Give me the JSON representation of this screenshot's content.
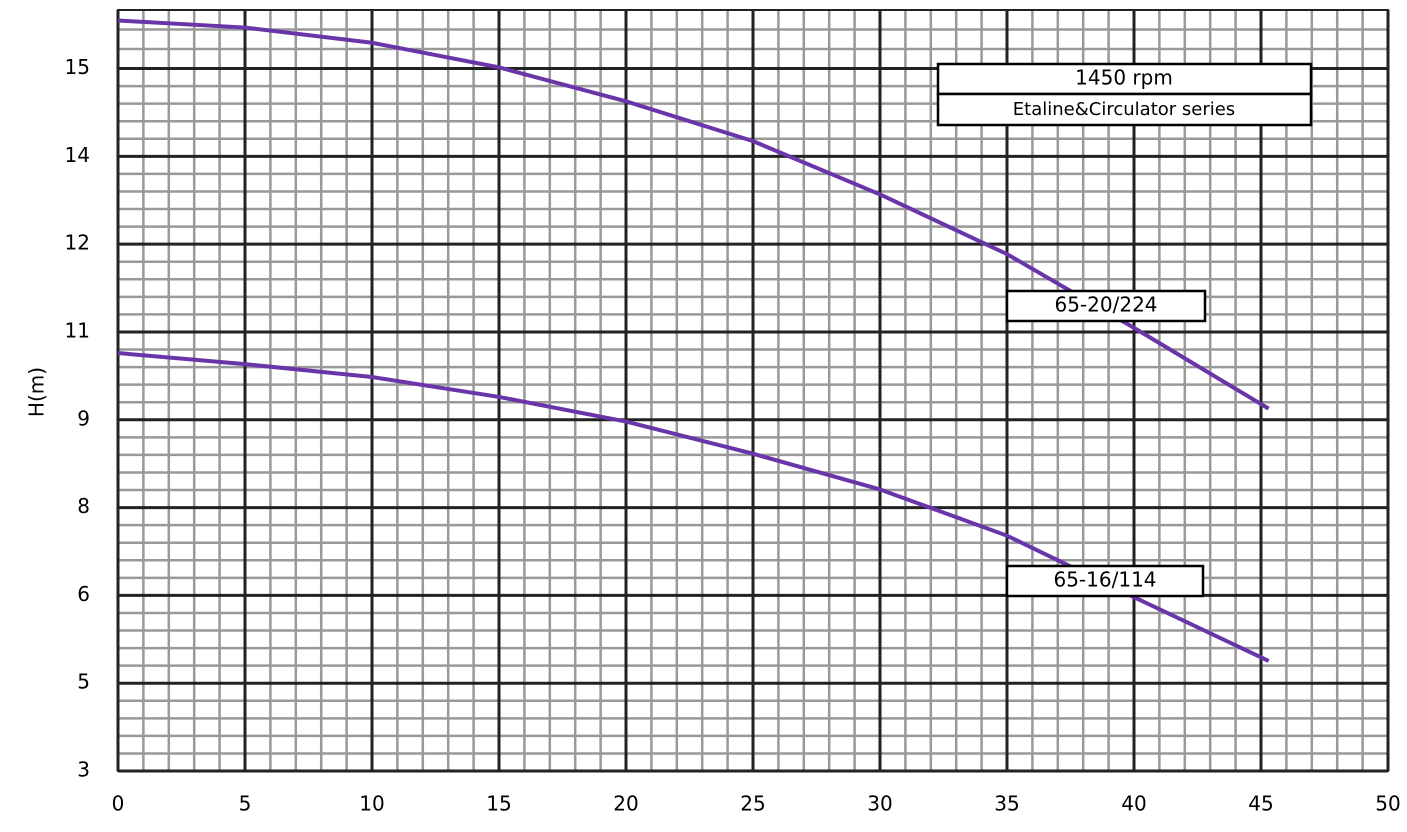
{
  "chart_data": {
    "type": "line",
    "y_label": "H(m)",
    "annotations": [
      "1450 rpm",
      "Etaline&Circulator series"
    ],
    "x": [
      0,
      5,
      10,
      15,
      20,
      25,
      30,
      35,
      40,
      45.3
    ],
    "series": [
      {
        "name": "65-20/224",
        "color": "#6a35a8",
        "values": [
          15.82,
          15.7,
          15.44,
          15.02,
          14.44,
          13.76,
          12.85,
          11.83,
          10.57,
          9.19
        ]
      },
      {
        "name": "65-16/114",
        "color": "#6a35a8",
        "values": [
          10.14,
          9.95,
          9.73,
          9.39,
          8.97,
          8.42,
          7.81,
          7.02,
          5.97,
          4.88
        ]
      }
    ],
    "xlim": [
      0,
      50
    ],
    "xticks": [
      0,
      5,
      10,
      15,
      20,
      25,
      30,
      35,
      40,
      45,
      50
    ],
    "ylim": [
      3,
      16
    ],
    "yticks": [
      3,
      {
        "value": 4.5,
        "label": "5"
      },
      6,
      {
        "value": 7.5,
        "label": "8"
      },
      9,
      {
        "value": 10.5,
        "label": "11"
      },
      12,
      {
        "value": 13.5,
        "label": "14"
      },
      15
    ],
    "grid": true,
    "minor_grid": true
  }
}
